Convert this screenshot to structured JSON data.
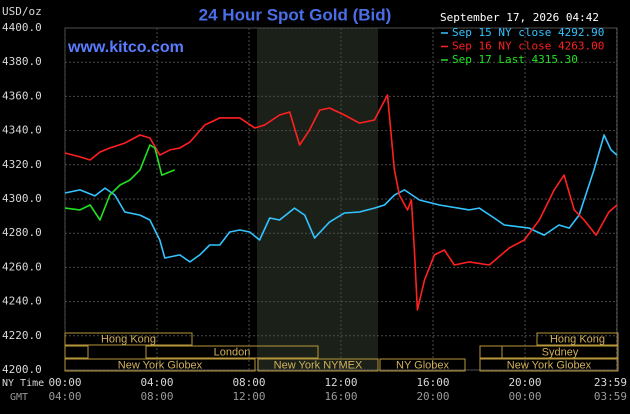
{
  "chart_data": {
    "type": "line",
    "title": "24 Hour Spot Gold (Bid)",
    "y_label": "USD/oz",
    "watermark": "www.kitco.com",
    "timestamp": "September 17, 2026 04:42",
    "x_axis_labels": [
      "NY Time",
      "GMT"
    ],
    "xlim": [
      0,
      24
    ],
    "xticks": [
      {
        "value": 0,
        "label": "00:00"
      },
      {
        "value": 4,
        "label": "04:00"
      },
      {
        "value": 8,
        "label": "08:00"
      },
      {
        "value": 12,
        "label": "12:00"
      },
      {
        "value": 16,
        "label": "16:00"
      },
      {
        "value": 20,
        "label": "20:00"
      },
      {
        "value": 23.98,
        "label": "23:59"
      }
    ],
    "gmt_ticks": [
      "04:00",
      "08:00",
      "12:00",
      "16:00",
      "20:00",
      "00:00",
      "03:59"
    ],
    "ylim": [
      4200,
      4400
    ],
    "yticks": [
      {
        "value": 4200,
        "label": "4200.0"
      },
      {
        "value": 4220,
        "label": "4220.0"
      },
      {
        "value": 4240,
        "label": "4240.0"
      },
      {
        "value": 4260,
        "label": "4260.0"
      },
      {
        "value": 4280,
        "label": "4280.0"
      },
      {
        "value": 4300,
        "label": "4300.0"
      },
      {
        "value": 4320,
        "label": "4320.0"
      },
      {
        "value": 4340,
        "label": "4340.0"
      },
      {
        "value": 4360,
        "label": "4360.0"
      },
      {
        "value": 4380,
        "label": "4380.0"
      },
      {
        "value": 4400,
        "label": "4400.0"
      }
    ],
    "grid": true,
    "legend": "top-right",
    "sessions": [
      "Hong Kong",
      "London",
      "New York Globex",
      "New York NYMEX",
      "NY Globex",
      "Sydney",
      "Hong Kong",
      "New York Globex"
    ],
    "series": [
      {
        "name": "Sep 15 NY close 4292.90",
        "color": "#33c3ff",
        "x": [
          0,
          0.65,
          1.3,
          1.74,
          2.17,
          2.6,
          3.26,
          3.69,
          4.12,
          4.34,
          4.99,
          5.43,
          5.86,
          6.29,
          6.73,
          7.16,
          7.6,
          8.03,
          8.46,
          8.9,
          9.33,
          9.98,
          10.42,
          10.85,
          11.5,
          12.15,
          12.8,
          13.45,
          13.89,
          14.32,
          14.76,
          15.41,
          16.28,
          17.58,
          18.01,
          18.66,
          19.1,
          20.18,
          20.83,
          21.48,
          21.92,
          22.35,
          23.0,
          23.44,
          23.74,
          24.0
        ],
        "values": [
          4303.5,
          4305.3,
          4301.8,
          4306.4,
          4302.3,
          4292.4,
          4290.6,
          4287.7,
          4276.0,
          4265.5,
          4267.3,
          4263.2,
          4267.3,
          4273.1,
          4273.1,
          4280.7,
          4281.9,
          4280.7,
          4276.0,
          4288.9,
          4287.7,
          4294.7,
          4290.6,
          4277.2,
          4286.5,
          4291.8,
          4292.4,
          4294.7,
          4296.5,
          4302.3,
          4305.3,
          4299.4,
          4296.5,
          4293.6,
          4294.7,
          4288.9,
          4284.8,
          4283.0,
          4278.9,
          4284.8,
          4283.0,
          4290.6,
          4317.0,
          4337.4,
          4328.7,
          4325.7
        ]
      },
      {
        "name": "Sep 16 NY close 4263.00",
        "color": "#ff2020",
        "x": [
          0,
          0.65,
          1.09,
          1.52,
          1.95,
          2.6,
          3.26,
          3.69,
          4.12,
          4.56,
          4.99,
          5.43,
          6.08,
          6.73,
          7.6,
          8.25,
          8.68,
          9.33,
          9.77,
          10.2,
          10.63,
          11.07,
          11.5,
          12.15,
          12.8,
          13.45,
          14.02,
          14.32,
          14.54,
          14.89,
          15.06,
          15.19,
          15.32,
          15.63,
          16.06,
          16.49,
          16.93,
          17.58,
          18.45,
          19.31,
          19.97,
          20.62,
          21.27,
          21.7,
          22.14,
          22.57,
          23.09,
          23.65,
          24.0
        ],
        "values": [
          4326.9,
          4324.6,
          4322.8,
          4327.5,
          4329.8,
          4332.7,
          4337.4,
          4335.7,
          4325.7,
          4328.7,
          4329.8,
          4333.3,
          4343.3,
          4347.4,
          4347.4,
          4341.5,
          4343.3,
          4349.1,
          4350.9,
          4331.6,
          4340.3,
          4352.0,
          4353.2,
          4349.1,
          4344.4,
          4346.2,
          4360.8,
          4317.0,
          4302.3,
          4293.6,
          4299.4,
          4270.2,
          4235.1,
          4252.6,
          4267.3,
          4270.2,
          4261.4,
          4263.2,
          4261.4,
          4271.3,
          4276.0,
          4287.7,
          4305.3,
          4314.0,
          4293.6,
          4287.7,
          4278.9,
          4292.4,
          4296.5
        ]
      },
      {
        "name": "Sep 17 Last 4315.30",
        "color": "#22e022",
        "x": [
          0,
          0.65,
          1.09,
          1.52,
          1.95,
          2.39,
          2.82,
          3.26,
          3.69,
          3.91,
          4.21,
          4.77
        ],
        "values": [
          4294.7,
          4293.6,
          4296.5,
          4287.7,
          4302.3,
          4308.2,
          4311.1,
          4317.0,
          4331.6,
          4329.8,
          4314.0,
          4317.0
        ]
      }
    ]
  }
}
